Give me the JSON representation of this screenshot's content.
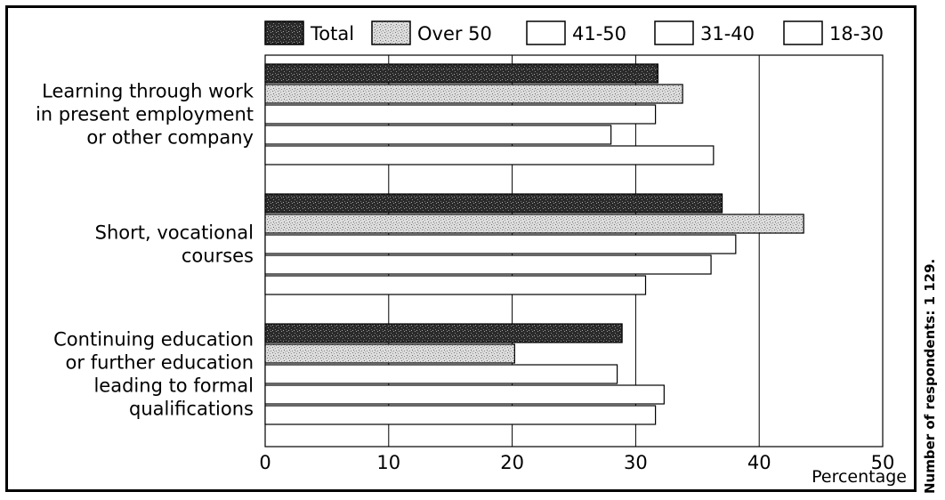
{
  "chart_data": {
    "type": "bar",
    "orientation": "horizontal",
    "categories": [
      [
        "Learning through work",
        "in present employment",
        "or other company"
      ],
      [
        "Short, vocational",
        "courses"
      ],
      [
        "Continuing education",
        "or further education",
        "leading to formal",
        "qualifications"
      ]
    ],
    "series": [
      {
        "name": "Total",
        "values": [
          31.8,
          37.0,
          28.9
        ]
      },
      {
        "name": "Over 50",
        "values": [
          33.8,
          43.6,
          20.2
        ]
      },
      {
        "name": "41-50",
        "values": [
          31.6,
          38.1,
          28.5
        ]
      },
      {
        "name": "31-40",
        "values": [
          28.0,
          36.1,
          32.3
        ]
      },
      {
        "name": "18-30",
        "values": [
          36.3,
          30.8,
          31.6
        ]
      }
    ],
    "xlim": [
      0,
      50
    ],
    "xticks": [
      0,
      10,
      20,
      30,
      40,
      50
    ],
    "xlabel": "Percentage",
    "legend_position": "top",
    "grid": true,
    "colors": {
      "Total": "#333333",
      "Over 50": "#cfcfcf",
      "41-50": "#ffffff",
      "31-40": "#ffffff",
      "18-30": "#ffffff"
    }
  },
  "note": "Number of respondents: 1 129."
}
